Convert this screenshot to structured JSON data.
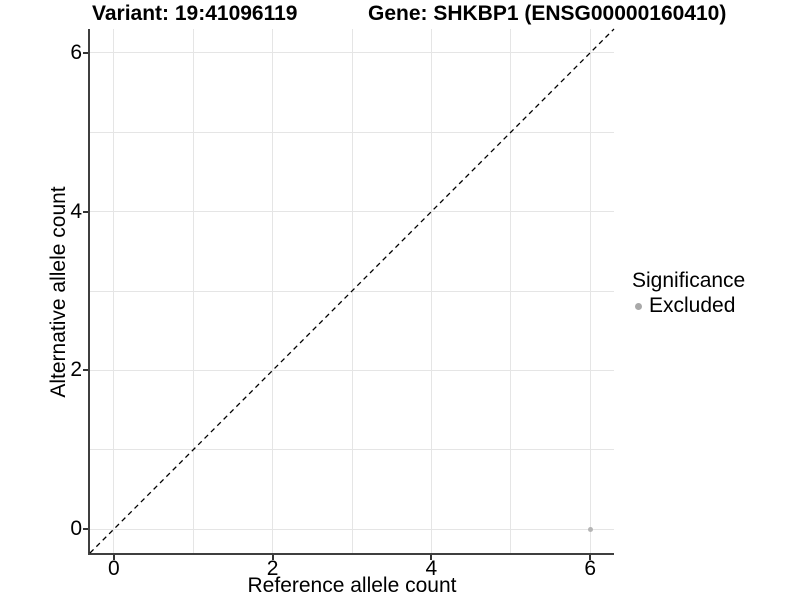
{
  "figure": {
    "title_left": "Variant: 19:41096119",
    "title_right": "Gene: SHKBP1 (ENSG00000160410)"
  },
  "chart_data": {
    "type": "scatter",
    "xlabel": "Reference allele count",
    "ylabel": "Alternative allele count",
    "xlim": [
      -0.3,
      6.3
    ],
    "ylim": [
      -0.3,
      6.3
    ],
    "x_ticks": [
      0,
      2,
      4,
      6
    ],
    "y_ticks": [
      0,
      2,
      4,
      6
    ],
    "grid_lines": [
      0,
      1,
      2,
      3,
      4,
      5,
      6
    ],
    "grid": true,
    "identity_line": {
      "style": "dashed",
      "x1": -0.3,
      "y1": -0.3,
      "x2": 6.3,
      "y2": 6.3
    },
    "series": [
      {
        "name": "Excluded",
        "points": [
          {
            "x": 6,
            "y": 0
          }
        ],
        "point_diameter": 5
      }
    ],
    "legend": {
      "position": "right",
      "title": "Significance",
      "items": [
        {
          "label": "Excluded"
        }
      ]
    }
  },
  "colors": {
    "background": "#ffffff",
    "grid": "#e5e5e5",
    "axis_line": "#3f3f3f",
    "tick_mark": "#333333",
    "identity_line": "#000000",
    "point": "#b5b5b5",
    "legend_dot": "#a9a9a9",
    "text": "#000000"
  }
}
